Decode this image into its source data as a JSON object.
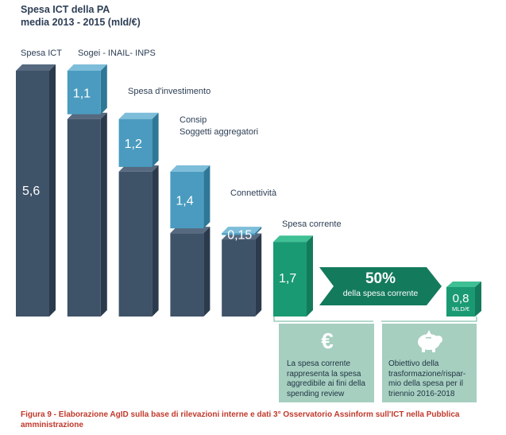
{
  "title": {
    "line1": "Spesa ICT della PA",
    "line2": "media 2013 - 2015 (mld/€)"
  },
  "chart_data": {
    "type": "bar",
    "categories": [
      "Spesa ICT",
      "Sogei - INAIL- INPS",
      "Spesa d'investimento",
      "Consip",
      "Connettività",
      "Spesa corrente"
    ],
    "values": [
      5.6,
      1.1,
      1.2,
      1.4,
      0.15,
      1.7
    ],
    "value_labels": [
      "5,6",
      "1,1",
      "1,2",
      "1,4",
      "0,15",
      "1,7"
    ],
    "category_labels": {
      "spesa_ict": "Spesa ICT",
      "sogei": "Sogei - INAIL- INPS",
      "investimento": "Spesa d'investimento",
      "consip_1": "Consip",
      "consip_2": "Soggetti aggregatori",
      "connettivita": "Connettività",
      "corrente": "Spesa corrente"
    },
    "waterfall": true,
    "saving": {
      "percent_label": "50%",
      "percent_sub": "della spesa  corrente",
      "value_label": "0,8",
      "unit_label": "MLD/€"
    }
  },
  "colors": {
    "dark_bar": "#3e5268",
    "light_bar": "#4a9bbf",
    "green_bar": "#1a9a72",
    "green_dark": "#147a5c",
    "box_fill": "#a6cfc0"
  },
  "info_boxes": {
    "left": {
      "icon": "euro-icon",
      "symbol": "€",
      "text": [
        "La spesa corrente",
        "rappresenta la spesa",
        "aggredibile ai fini della",
        "spending review"
      ]
    },
    "right": {
      "icon": "piggy-bank-icon",
      "text": [
        "Obiettivo della",
        "trasformazione/rispar-",
        "mio della spesa per il",
        "triennio 2016-2018"
      ]
    }
  },
  "caption": "Figura 9 - Elaborazione AgID sulla base di rilevazioni interne e dati 3° Osservatorio Assinform sull'ICT nella Pubblica amministrazione"
}
